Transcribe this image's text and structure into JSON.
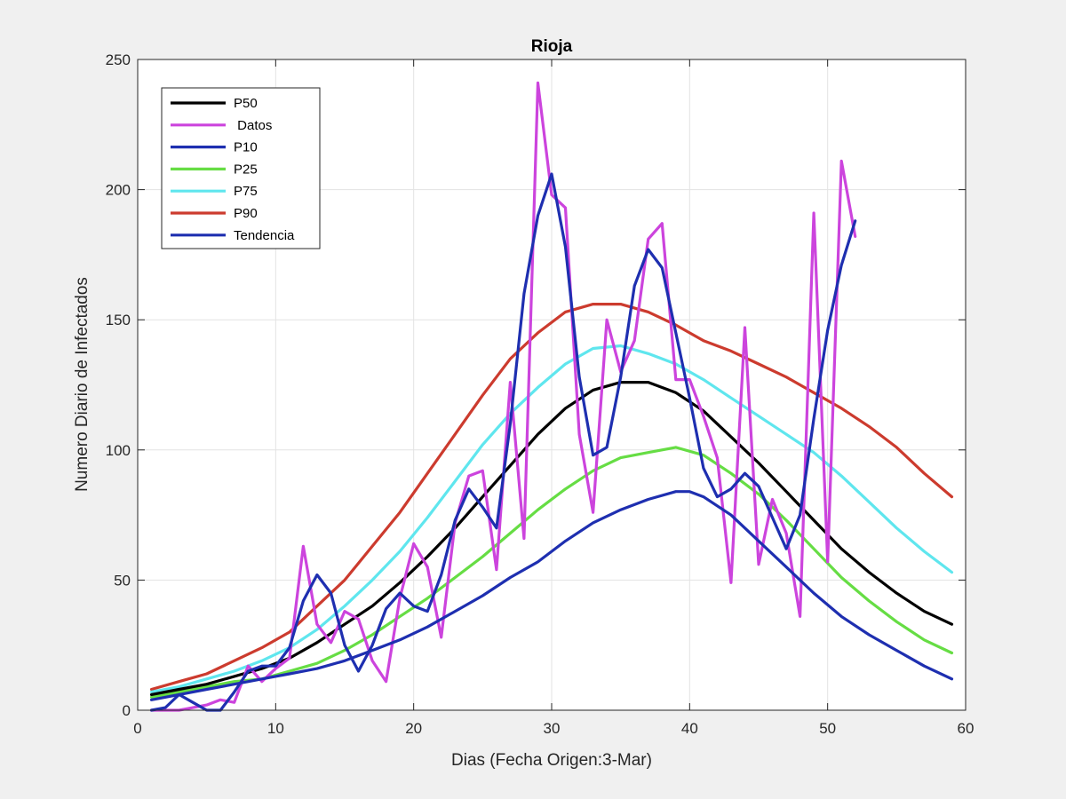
{
  "chart_data": {
    "type": "line",
    "title": "Rioja",
    "xlabel": "Dias (Fecha Origen:3-Mar)",
    "ylabel": "Numero Diario de Infectados",
    "xlim": [
      0,
      60
    ],
    "ylim": [
      0,
      250
    ],
    "xticks": [
      0,
      10,
      20,
      30,
      40,
      50,
      60
    ],
    "yticks": [
      0,
      50,
      100,
      150,
      200,
      250
    ],
    "grid": true,
    "legend_position": "top-left",
    "series": [
      {
        "name": "P50",
        "color": "#000000",
        "x": [
          1,
          3,
          5,
          7,
          9,
          11,
          13,
          15,
          17,
          19,
          21,
          23,
          25,
          27,
          29,
          31,
          33,
          35,
          37,
          39,
          41,
          43,
          45,
          47,
          49,
          51,
          53,
          55,
          57,
          59
        ],
        "y": [
          6,
          8,
          10,
          13,
          16,
          20,
          26,
          33,
          40,
          49,
          59,
          70,
          82,
          94,
          106,
          116,
          123,
          126,
          126,
          122,
          115,
          105,
          95,
          84,
          73,
          62,
          53,
          45,
          38,
          33
        ]
      },
      {
        "name": "Datos",
        "color": "#cc44dd",
        "x": [
          1,
          2,
          3,
          4,
          5,
          6,
          7,
          8,
          9,
          10,
          11,
          12,
          13,
          14,
          15,
          16,
          17,
          18,
          19,
          20,
          21,
          22,
          23,
          24,
          25,
          26,
          27,
          28,
          29,
          30,
          31,
          32,
          33,
          34,
          35,
          36,
          37,
          38,
          39,
          40,
          41,
          42,
          43,
          44,
          45,
          46,
          47,
          48,
          49,
          50,
          51,
          52
        ],
        "y": [
          0,
          0,
          0,
          1,
          2,
          4,
          3,
          17,
          11,
          16,
          20,
          63,
          33,
          26,
          38,
          35,
          19,
          11,
          43,
          64,
          55,
          28,
          72,
          90,
          92,
          54,
          126,
          66,
          241,
          198,
          193,
          106,
          76,
          150,
          130,
          142,
          181,
          187,
          127,
          127,
          113,
          97,
          49,
          147,
          56,
          81,
          68,
          36,
          191,
          57,
          211,
          182
        ]
      },
      {
        "name": "P10",
        "color": "#1e2fb0",
        "x": [
          1,
          2,
          3,
          4,
          5,
          6,
          7,
          8,
          9,
          10,
          11,
          12,
          13,
          14,
          15,
          16,
          17,
          18,
          19,
          20,
          21,
          22,
          23,
          24,
          25,
          26,
          27,
          28,
          29,
          30,
          31,
          32,
          33,
          34,
          35,
          36,
          37,
          38,
          39,
          40,
          41,
          42,
          43,
          44,
          45,
          46,
          47,
          48,
          49,
          50,
          51,
          52
        ],
        "y": [
          0,
          1,
          6,
          3,
          0,
          0,
          7,
          15,
          17,
          17,
          24,
          42,
          52,
          45,
          25,
          15,
          25,
          39,
          45,
          40,
          38,
          52,
          73,
          85,
          78,
          70,
          110,
          160,
          190,
          206,
          178,
          128,
          98,
          101,
          128,
          163,
          177,
          170,
          145,
          120,
          93,
          82,
          85,
          91,
          86,
          74,
          62,
          75,
          112,
          146,
          171,
          188
        ]
      },
      {
        "name": "P25",
        "color": "#66dd44",
        "x": [
          1,
          3,
          5,
          7,
          9,
          11,
          13,
          15,
          17,
          19,
          21,
          23,
          25,
          27,
          29,
          31,
          33,
          35,
          37,
          39,
          41,
          43,
          45,
          47,
          49,
          51,
          53,
          55,
          57,
          59
        ],
        "y": [
          5,
          7,
          9,
          11,
          12,
          15,
          18,
          23,
          29,
          36,
          43,
          51,
          59,
          68,
          77,
          85,
          92,
          97,
          99,
          101,
          98,
          91,
          83,
          73,
          62,
          51,
          42,
          34,
          27,
          22
        ]
      },
      {
        "name": "P75",
        "color": "#5fe6ee",
        "x": [
          1,
          3,
          5,
          7,
          9,
          11,
          13,
          15,
          17,
          19,
          21,
          23,
          25,
          27,
          29,
          31,
          33,
          35,
          37,
          39,
          41,
          43,
          45,
          47,
          49,
          51,
          53,
          55,
          57,
          59
        ],
        "y": [
          7,
          9,
          12,
          15,
          19,
          24,
          31,
          40,
          50,
          61,
          74,
          88,
          102,
          114,
          124,
          133,
          139,
          140,
          137,
          133,
          127,
          120,
          113,
          106,
          99,
          90,
          80,
          70,
          61,
          53
        ]
      },
      {
        "name": "P90",
        "color": "#cc3b2e",
        "x": [
          1,
          3,
          5,
          7,
          9,
          11,
          13,
          15,
          17,
          19,
          21,
          23,
          25,
          27,
          29,
          31,
          33,
          35,
          37,
          39,
          41,
          43,
          45,
          47,
          49,
          51,
          53,
          55,
          57,
          59
        ],
        "y": [
          8,
          11,
          14,
          19,
          24,
          30,
          40,
          50,
          63,
          76,
          91,
          106,
          121,
          135,
          145,
          153,
          156,
          156,
          153,
          148,
          142,
          138,
          133,
          128,
          122,
          116,
          109,
          101,
          91,
          82
        ]
      },
      {
        "name": "Tendencia",
        "color": "#1e2fb0",
        "x": [
          1,
          3,
          5,
          7,
          9,
          11,
          13,
          15,
          17,
          19,
          21,
          23,
          25,
          27,
          29,
          31,
          33,
          35,
          37,
          39,
          40,
          41,
          43,
          45,
          47,
          49,
          51,
          53,
          55,
          57,
          59
        ],
        "y": [
          4,
          6,
          8,
          10,
          12,
          14,
          16,
          19,
          23,
          27,
          32,
          38,
          44,
          51,
          57,
          65,
          72,
          77,
          81,
          84,
          84,
          82,
          75,
          65,
          55,
          45,
          36,
          29,
          23,
          17,
          12
        ]
      }
    ]
  }
}
